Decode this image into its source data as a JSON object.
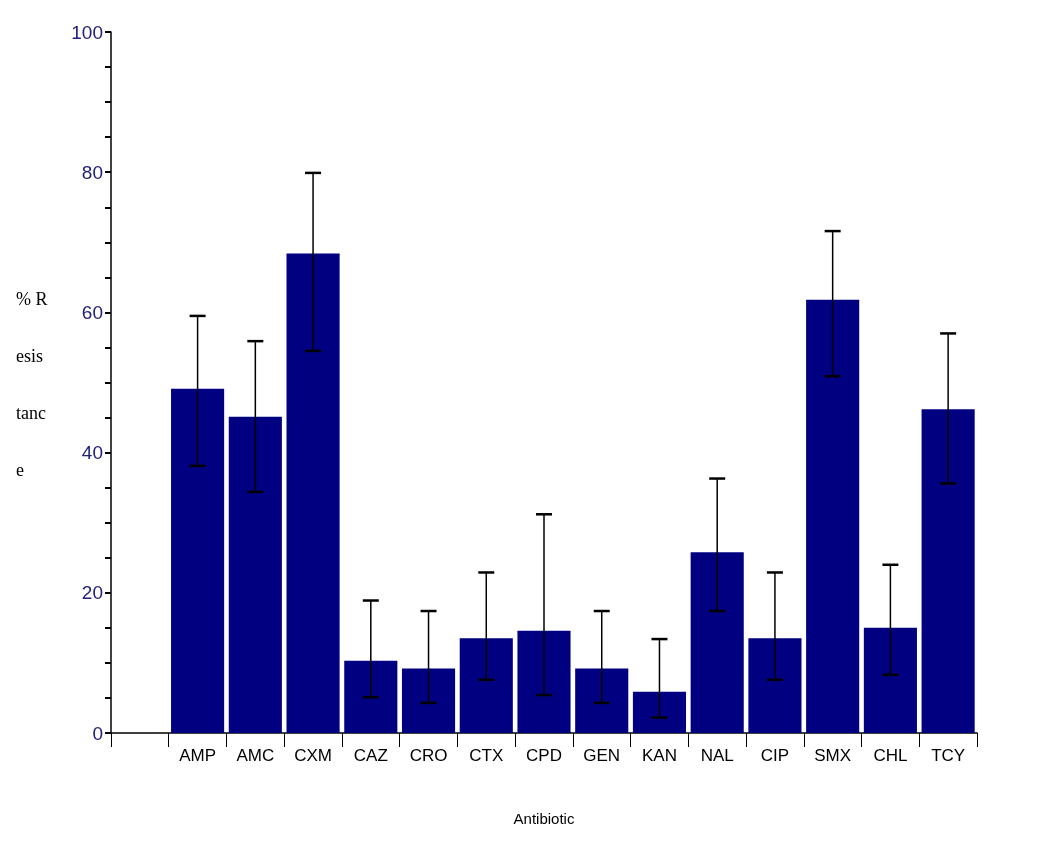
{
  "chart_data": {
    "type": "bar",
    "xlabel": "Antibiotic",
    "ylabel": "% Resistance",
    "categories": [
      null,
      "AMP",
      "AMC",
      "CXM",
      "CAZ",
      "CRO",
      "CTX",
      "CPD",
      "GEN",
      "KAN",
      "NAL",
      "CIP",
      "SMX",
      "CHL",
      "TCY"
    ],
    "values": [
      0,
      49.1,
      45.1,
      68.4,
      10.3,
      9.2,
      13.5,
      14.6,
      9.2,
      5.9,
      25.8,
      13.5,
      61.8,
      15.0,
      46.2
    ],
    "errors": [
      null,
      [
        38.1,
        59.5
      ],
      [
        34.4,
        55.9
      ],
      [
        54.5,
        79.9
      ],
      [
        5.1,
        18.9
      ],
      [
        4.3,
        17.4
      ],
      [
        7.6,
        22.9
      ],
      [
        5.4,
        31.2
      ],
      [
        4.3,
        17.4
      ],
      [
        2.2,
        13.4
      ],
      [
        17.4,
        36.3
      ],
      [
        7.6,
        22.9
      ],
      [
        50.9,
        71.6
      ],
      [
        8.3,
        24.0
      ],
      [
        35.6,
        57.0
      ]
    ],
    "color": "#000080",
    "ylim": [
      0,
      100
    ],
    "yticks": [
      0,
      {
        "value": 5,
        "label": null
      },
      {
        "value": 10,
        "label": null
      },
      {
        "value": 15,
        "label": null
      },
      20,
      {
        "value": 25,
        "label": null
      },
      {
        "value": 30,
        "label": null
      },
      {
        "value": 35,
        "label": null
      },
      40,
      {
        "value": 45,
        "label": null
      },
      {
        "value": 50,
        "label": null
      },
      {
        "value": 55,
        "label": null
      },
      60,
      {
        "value": 65,
        "label": null
      },
      {
        "value": 70,
        "label": null
      },
      {
        "value": 75,
        "label": null
      },
      80,
      {
        "value": 85,
        "label": null
      },
      {
        "value": 90,
        "label": null
      },
      {
        "value": 95,
        "label": null
      },
      100
    ],
    "grid": false
  }
}
